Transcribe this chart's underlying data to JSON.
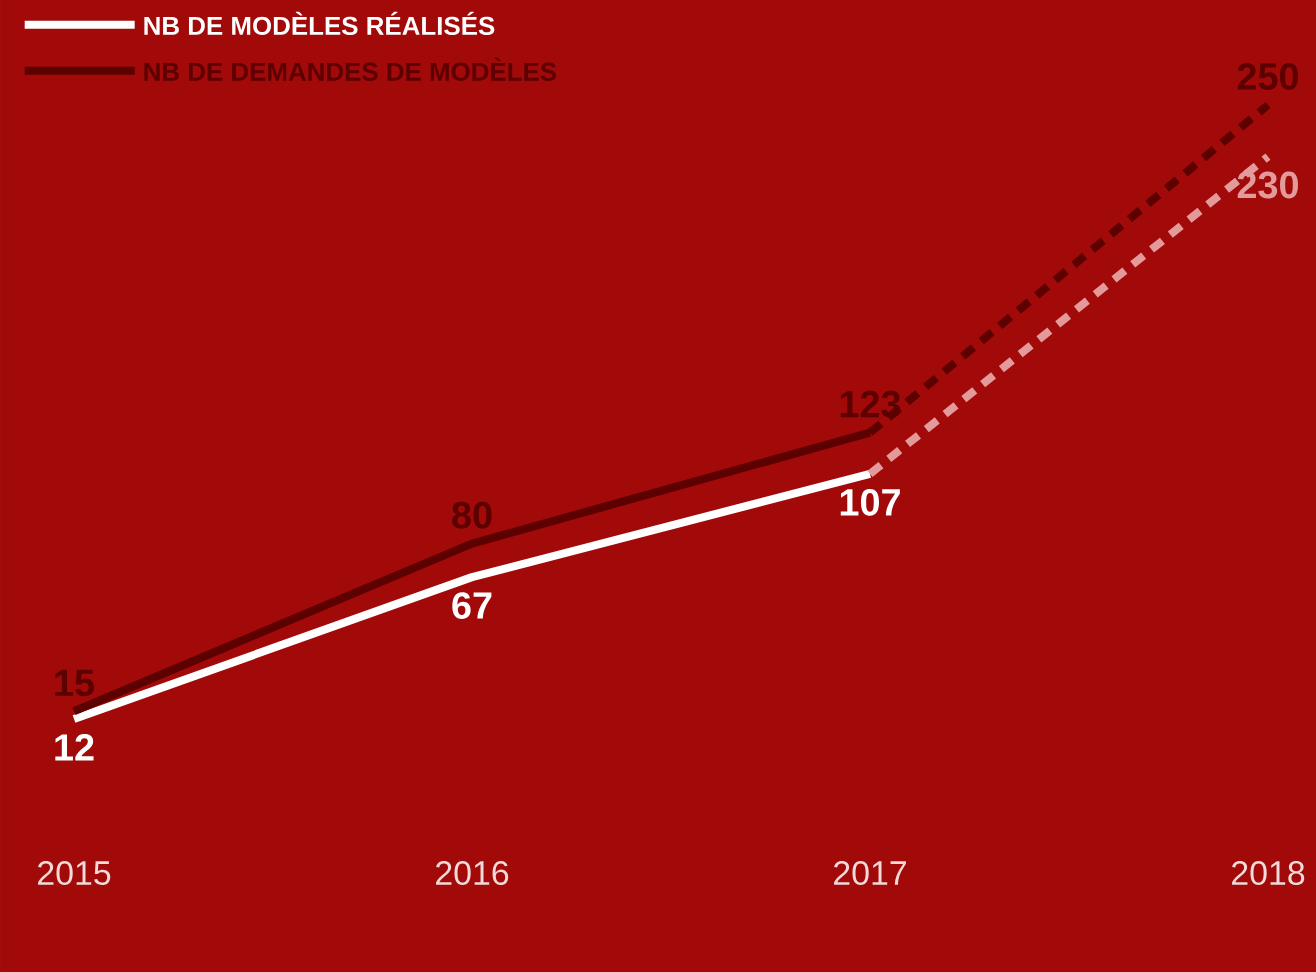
{
  "chart_data": {
    "type": "line",
    "xlim": [
      2015,
      2018
    ],
    "xticks": [
      2015,
      2016,
      2017,
      2018
    ],
    "tick_labels": "x",
    "legend": "top left",
    "grid": false,
    "marker": "none",
    "series": [
      {
        "name": "NB DE MODÈLES RÉALISÉS",
        "color": "#ffffff",
        "x": [
          2015,
          2016,
          2017
        ],
        "values": [
          12,
          67,
          107
        ],
        "value_labels": [
          "12",
          "67",
          "107"
        ]
      },
      {
        "name": "NB DE DEMANDES DE MODÈLES",
        "color": "#5c0000",
        "x": [
          2015,
          2016,
          2017
        ],
        "values": [
          15,
          80,
          123
        ],
        "value_labels": [
          "15",
          "80",
          "123"
        ]
      },
      {
        "color": "#e49a9a",
        "x": [
          2017,
          2018
        ],
        "values": [
          107,
          230
        ],
        "value_labels": [
          null,
          "230"
        ],
        "line_style": "dashed"
      },
      {
        "color": "#5c0000",
        "x": [
          2017,
          2018
        ],
        "values": [
          123,
          250
        ],
        "value_labels": [
          null,
          "250"
        ],
        "line_style": "dashed"
      }
    ]
  }
}
